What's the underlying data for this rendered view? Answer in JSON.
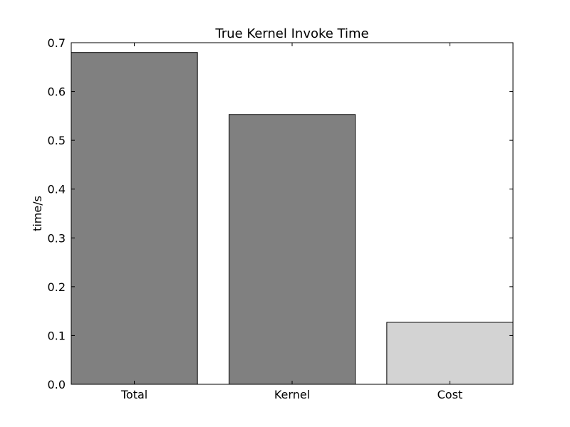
{
  "chart_data": {
    "type": "bar",
    "title": "True Kernel Invoke Time",
    "xlabel": "",
    "ylabel": "time/s",
    "categories": [
      "Total",
      "Kernel",
      "Cost"
    ],
    "values": [
      0.68,
      0.553,
      0.127
    ],
    "bar_colors": [
      "#808080",
      "#808080",
      "#d3d3d3"
    ],
    "edge_color": "#000000",
    "ylim": [
      0,
      0.7
    ],
    "yticks": [
      0.0,
      0.1,
      0.2,
      0.3,
      0.4,
      0.5,
      0.6,
      0.7
    ],
    "ytick_labels": [
      "0.0",
      "0.1",
      "0.2",
      "0.3",
      "0.4",
      "0.5",
      "0.6",
      "0.7"
    ],
    "grid": false,
    "legend": "none"
  }
}
